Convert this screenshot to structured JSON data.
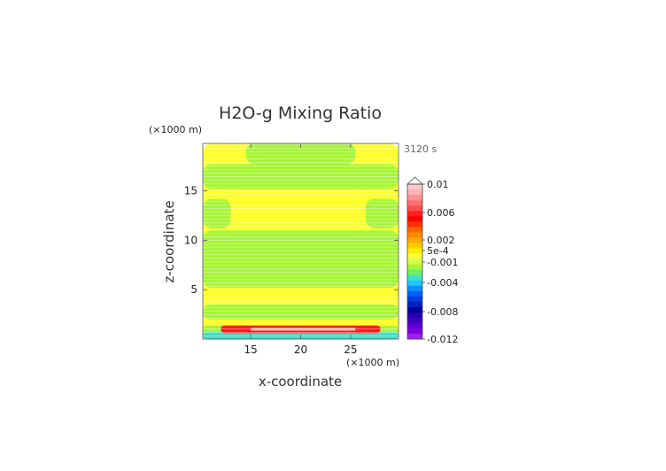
{
  "chart_data": {
    "type": "heatmap",
    "title": "H2O-g Mixing Ratio",
    "xlabel": "x-coordinate",
    "ylabel": "z-coordinate",
    "x_unit": "(×1000 m)",
    "y_unit": "(×1000 m)",
    "time_label": "3120 s",
    "xlim": [
      10.2,
      29.8
    ],
    "ylim": [
      0.0,
      19.8
    ],
    "x_ticks": [
      15,
      20,
      25
    ],
    "y_ticks": [
      5,
      10,
      15
    ],
    "colorbar": {
      "extend": "max",
      "labels": [
        {
          "text": "0.01",
          "value": 0.01
        },
        {
          "text": "0.006",
          "value": 0.006
        },
        {
          "text": "0.002",
          "value": 0.002
        },
        {
          "text": "5e-4",
          "value": 0.0005
        },
        {
          "text": "-0.001",
          "value": -0.001
        },
        {
          "text": "-0.004",
          "value": -0.004
        },
        {
          "text": "-0.008",
          "value": -0.008
        },
        {
          "text": "-0.012",
          "value": -0.012
        }
      ]
    },
    "regions": [
      {
        "level": "yellow",
        "x": [
          10.2,
          29.8
        ],
        "z": [
          0.0,
          19.8
        ]
      },
      {
        "level": "green",
        "x": [
          14.5,
          25.5
        ],
        "z": [
          17.7,
          19.8
        ]
      },
      {
        "level": "green",
        "x": [
          10.2,
          29.8
        ],
        "z": [
          15.2,
          17.7
        ]
      },
      {
        "level": "green",
        "x": [
          10.2,
          13.0
        ],
        "z": [
          11.2,
          14.2
        ]
      },
      {
        "level": "green",
        "x": [
          26.5,
          29.8
        ],
        "z": [
          11.2,
          14.2
        ]
      },
      {
        "level": "green",
        "x": [
          10.2,
          29.8
        ],
        "z": [
          5.2,
          11.0
        ]
      },
      {
        "level": "green",
        "x": [
          10.2,
          29.8
        ],
        "z": [
          2.0,
          3.5
        ]
      },
      {
        "level": "green",
        "x": [
          10.2,
          29.8
        ],
        "z": [
          0.3,
          1.4
        ]
      },
      {
        "level": "cyan",
        "x": [
          10.2,
          29.8
        ],
        "z": [
          0.0,
          0.7
        ]
      },
      {
        "level": "red",
        "x": [
          12.0,
          28.0
        ],
        "z": [
          0.6,
          1.4
        ]
      },
      {
        "level": "pink",
        "x": [
          15.0,
          25.5
        ],
        "z": [
          0.85,
          1.15
        ]
      }
    ]
  }
}
